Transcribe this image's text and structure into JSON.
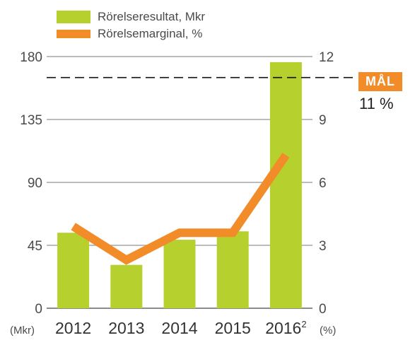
{
  "legend": {
    "bar_label": "Rörelseresultat, Mkr",
    "line_label": "Rörelsemarginal, %"
  },
  "goal": {
    "label": "MÅL",
    "value_text": "11 %",
    "value": 11
  },
  "axes": {
    "left_unit": "(Mkr)",
    "right_unit": "(%)"
  },
  "colors": {
    "bar": "#b6d12e",
    "line": "#f28c28",
    "goal_badge": "#f28c28",
    "grid": "#a6a6a6"
  },
  "chart_data": {
    "type": "bar",
    "categories": [
      "2012",
      "2013",
      "2014",
      "2015",
      "2016"
    ],
    "category_superscripts": [
      "",
      "",
      "",
      "",
      "2"
    ],
    "series": [
      {
        "name": "Rörelseresultat, Mkr",
        "type": "bar",
        "axis": "left",
        "values": [
          54,
          31,
          49,
          55,
          176
        ]
      },
      {
        "name": "Rörelsemarginal, %",
        "type": "line",
        "axis": "right",
        "values": [
          3.9,
          2.3,
          3.6,
          3.6,
          7.3
        ]
      }
    ],
    "y_left": {
      "ticks": [
        0,
        45,
        90,
        135,
        180
      ],
      "lim": [
        0,
        180
      ]
    },
    "y_right": {
      "ticks": [
        0,
        3,
        6,
        9,
        12
      ],
      "lim": [
        0,
        12
      ]
    },
    "reference_line": {
      "axis": "right",
      "value": 11,
      "style": "dashed"
    },
    "grid": true,
    "legend_position": "top-left"
  }
}
